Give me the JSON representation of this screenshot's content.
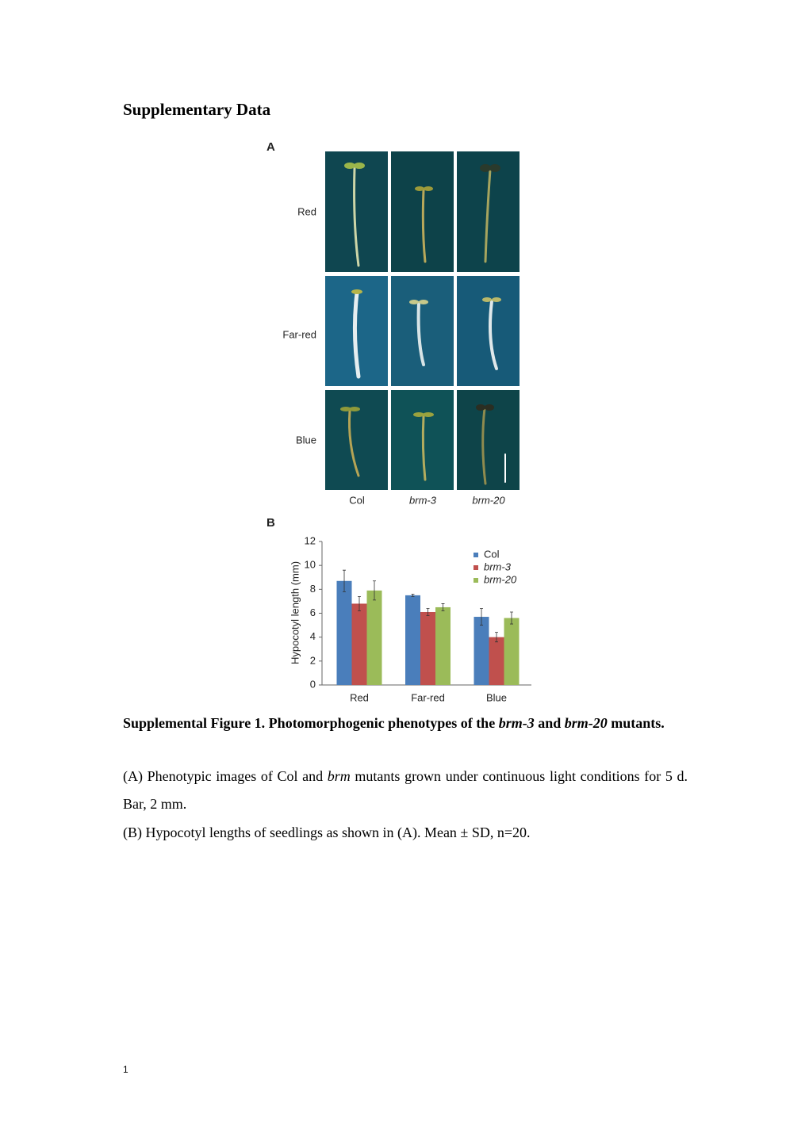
{
  "header": {
    "title": "Supplementary Data"
  },
  "panel_a": {
    "label": "A",
    "rows": [
      "Red",
      "Far-red",
      "Blue"
    ],
    "columns": [
      "Col",
      "brm-3",
      "brm-20"
    ]
  },
  "chart_data": {
    "type": "bar",
    "label": "B",
    "y_label": "Hypocotyl length (mm)",
    "categories": [
      "Red",
      "Far-red",
      "Blue"
    ],
    "series": [
      {
        "name": "Col",
        "color": "#4a7ebb",
        "values": [
          8.7,
          7.5,
          5.7
        ],
        "errors": [
          0.9,
          0.1,
          0.7
        ]
      },
      {
        "name": "brm-3",
        "color": "#c0504d",
        "values": [
          6.8,
          6.1,
          4.0
        ],
        "errors": [
          0.6,
          0.3,
          0.4
        ]
      },
      {
        "name": "brm-20",
        "color": "#9bbb59",
        "values": [
          7.9,
          6.5,
          5.6
        ],
        "errors": [
          0.8,
          0.3,
          0.5
        ]
      }
    ],
    "ylim": [
      0,
      12
    ],
    "yticks": [
      0,
      2,
      4,
      6,
      8,
      10,
      12
    ],
    "grid": false,
    "legend": "top-right"
  },
  "caption": {
    "title": [
      "Supplemental Figure 1. Photomorphogenic phenotypes of the ",
      "brm-3",
      " and ",
      "brm-20",
      " mutants."
    ],
    "a": [
      "(A) Phenotypic images of Col and ",
      "brm",
      " mutants grown under continuous light conditions for 5 d. Bar, 2 mm."
    ],
    "b": "(B) Hypocotyl lengths of seedlings as shown in (A). Mean ± SD, n=20."
  },
  "page_number": "1"
}
